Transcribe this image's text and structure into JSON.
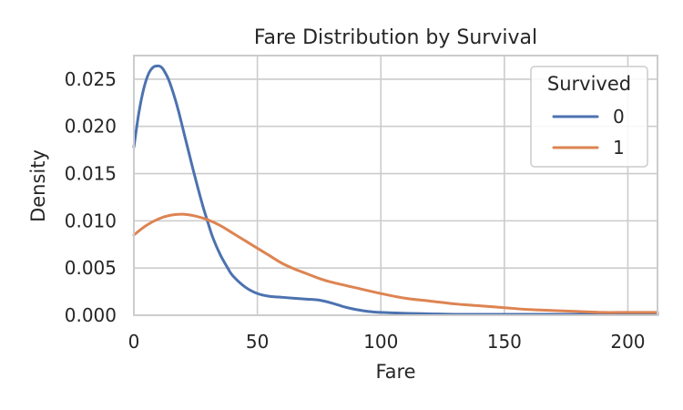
{
  "chart_data": {
    "type": "line",
    "title": "Fare Distribution by Survival",
    "xlabel": "Fare",
    "ylabel": "Density",
    "xlim": [
      0,
      212
    ],
    "ylim": [
      0,
      0.0275
    ],
    "xticks": [
      0,
      50,
      100,
      150,
      200
    ],
    "xtick_labels": [
      "0",
      "50",
      "100",
      "150",
      "200"
    ],
    "yticks": [
      0,
      0.005,
      0.01,
      0.015,
      0.02,
      0.025
    ],
    "ytick_labels": [
      "0.000",
      "0.005",
      "0.010",
      "0.015",
      "0.020",
      "0.025"
    ],
    "grid": true,
    "legend": {
      "title": "Survived",
      "placement": "top-right"
    },
    "series": [
      {
        "name": "0",
        "color": "#4c72b0",
        "x": [
          0,
          2,
          4,
          6,
          8,
          10,
          11,
          12,
          14,
          16,
          18,
          20,
          22,
          24,
          26,
          28,
          30,
          32,
          35,
          38,
          40,
          45,
          50,
          55,
          60,
          65,
          70,
          75,
          80,
          85,
          90,
          95,
          100,
          110,
          120,
          130,
          140,
          150,
          160,
          170,
          180,
          190,
          200,
          212
        ],
        "y": [
          0.0178,
          0.0214,
          0.024,
          0.0256,
          0.0263,
          0.0264,
          0.0263,
          0.026,
          0.025,
          0.0235,
          0.0217,
          0.0196,
          0.0175,
          0.0154,
          0.0134,
          0.0115,
          0.0098,
          0.0082,
          0.0064,
          0.005,
          0.0042,
          0.003,
          0.0023,
          0.002,
          0.0019,
          0.0018,
          0.0017,
          0.0016,
          0.0013,
          0.0009,
          0.0006,
          0.0004,
          0.0003,
          0.0002,
          0.00015,
          0.0001,
          0.0001,
          0.0001,
          0.0001,
          0.0001,
          0.0001,
          0.0001,
          0.0001,
          0.0001
        ]
      },
      {
        "name": "1",
        "color": "#dd8452",
        "x": [
          0,
          5,
          10,
          15,
          20,
          25,
          30,
          35,
          40,
          45,
          50,
          55,
          60,
          65,
          70,
          75,
          80,
          90,
          100,
          110,
          120,
          130,
          140,
          150,
          160,
          170,
          180,
          190,
          200,
          212
        ],
        "y": [
          0.0085,
          0.0095,
          0.0102,
          0.0106,
          0.0107,
          0.0105,
          0.0101,
          0.0095,
          0.0087,
          0.0079,
          0.0071,
          0.0063,
          0.0055,
          0.0049,
          0.0044,
          0.0039,
          0.0035,
          0.0029,
          0.0023,
          0.0018,
          0.0015,
          0.0012,
          0.001,
          0.0008,
          0.0006,
          0.0005,
          0.0004,
          0.0003,
          0.0003,
          0.0003
        ]
      }
    ]
  }
}
